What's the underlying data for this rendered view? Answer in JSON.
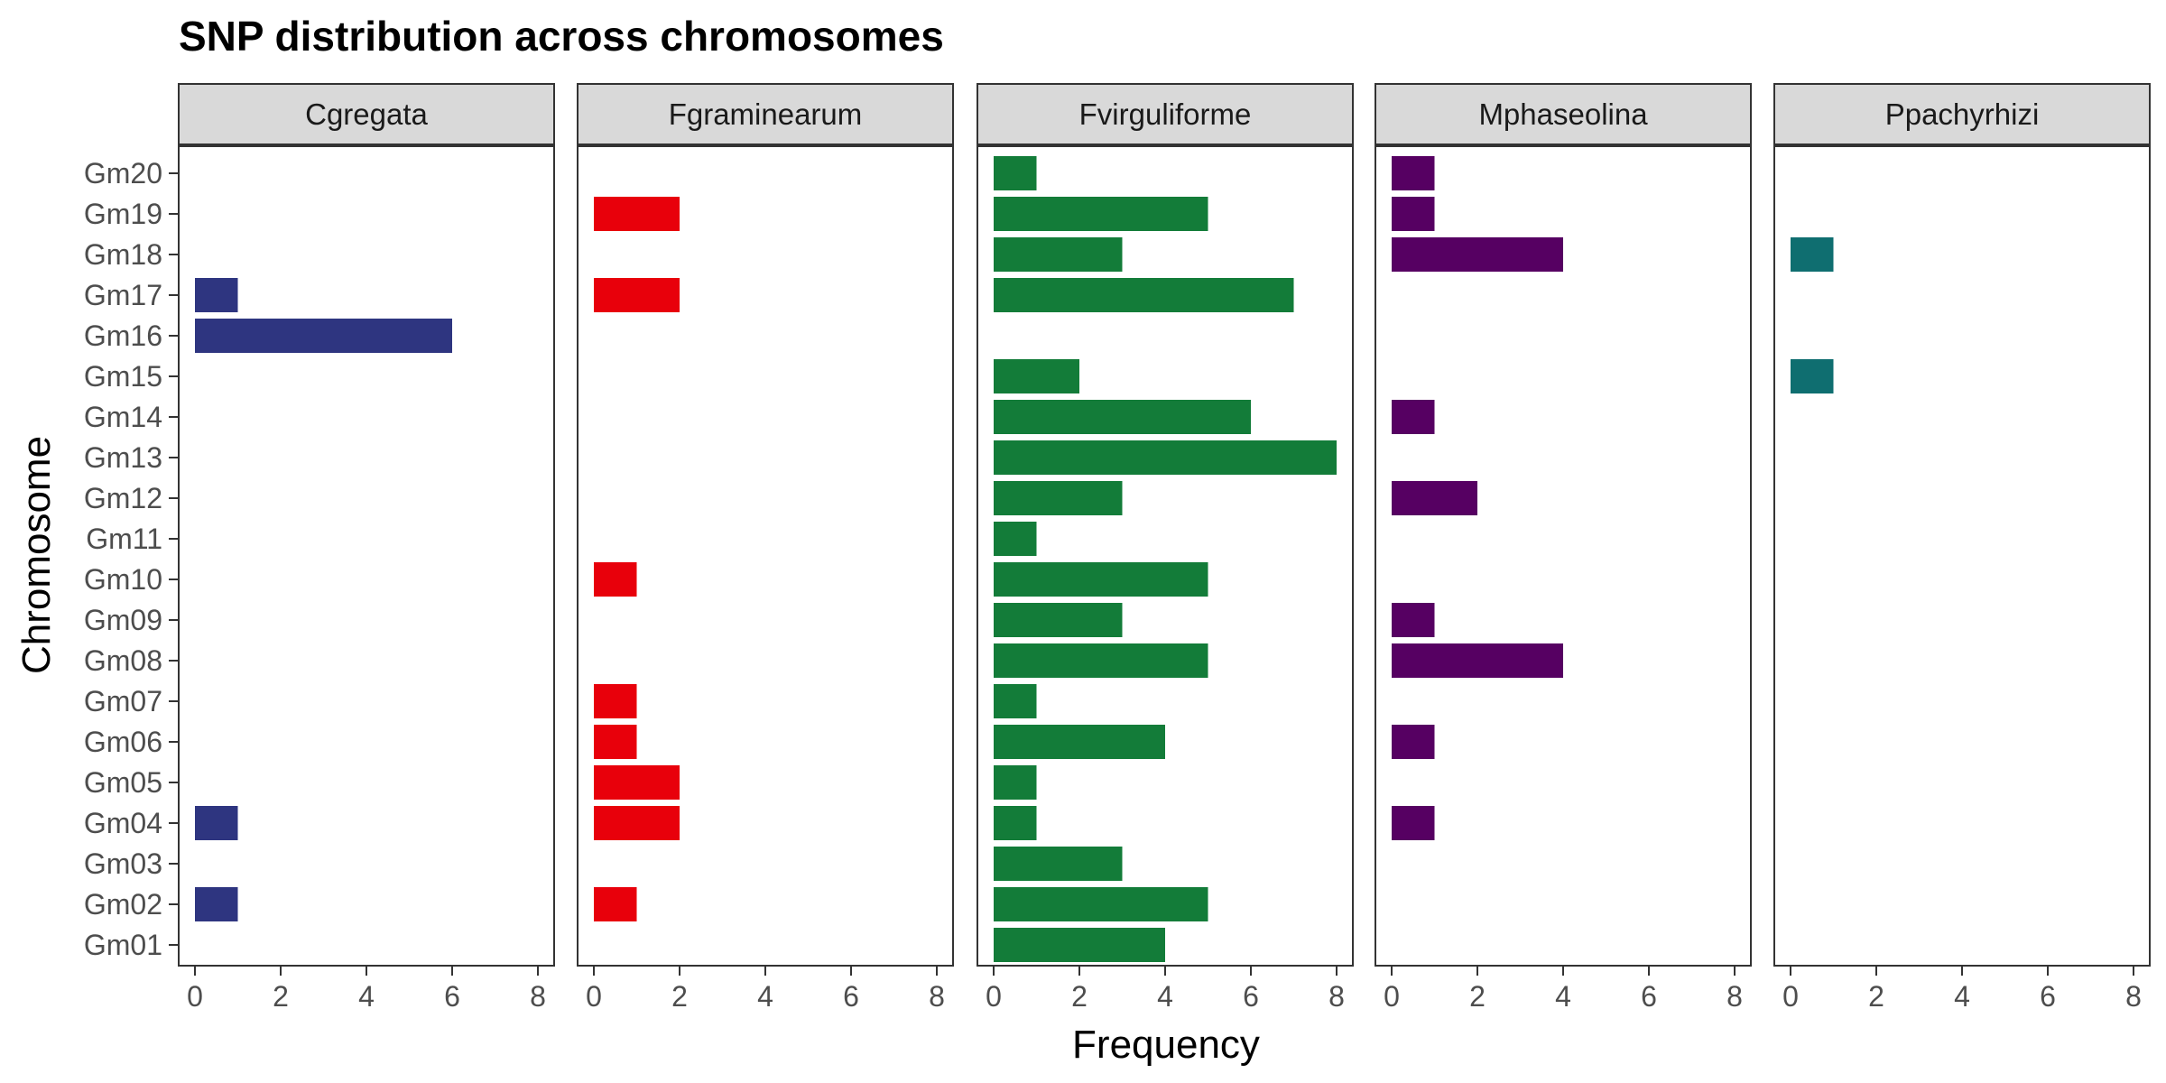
{
  "chart_data": {
    "type": "bar",
    "orientation": "horizontal",
    "faceted": true,
    "title": "SNP distribution across chromosomes",
    "xlabel": "Frequency",
    "ylabel": "Chromosome",
    "xlim": [
      0,
      8
    ],
    "x_ticks": [
      "0",
      "2",
      "4",
      "6",
      "8"
    ],
    "categories": [
      "Gm01",
      "Gm02",
      "Gm03",
      "Gm04",
      "Gm05",
      "Gm06",
      "Gm07",
      "Gm08",
      "Gm09",
      "Gm10",
      "Gm11",
      "Gm12",
      "Gm13",
      "Gm14",
      "Gm15",
      "Gm16",
      "Gm17",
      "Gm18",
      "Gm19",
      "Gm20"
    ],
    "grid": false,
    "legend": "none",
    "series": [
      {
        "name": "Cgregata",
        "color": "#2e3580",
        "values": [
          0,
          1,
          0,
          1,
          0,
          0,
          0,
          0,
          0,
          0,
          0,
          0,
          0,
          0,
          0,
          6,
          1,
          0,
          0,
          0
        ]
      },
      {
        "name": "Fgraminearum",
        "color": "#e8000b",
        "values": [
          0,
          1,
          0,
          2,
          2,
          1,
          1,
          0,
          0,
          1,
          0,
          0,
          0,
          0,
          0,
          0,
          2,
          0,
          2,
          0
        ]
      },
      {
        "name": "Fvirguliforme",
        "color": "#137c39",
        "values": [
          4,
          5,
          3,
          1,
          1,
          4,
          1,
          5,
          3,
          5,
          1,
          3,
          8,
          6,
          2,
          0,
          7,
          3,
          5,
          1
        ]
      },
      {
        "name": "Mphaseolina",
        "color": "#560062",
        "values": [
          0,
          0,
          0,
          1,
          0,
          1,
          0,
          4,
          1,
          0,
          0,
          2,
          0,
          1,
          0,
          0,
          0,
          4,
          1,
          1
        ]
      },
      {
        "name": "Ppachyrhizi",
        "color": "#0f6e70",
        "values": [
          0,
          0,
          0,
          0,
          0,
          0,
          0,
          0,
          0,
          0,
          0,
          0,
          0,
          0,
          1,
          0,
          0,
          1,
          0,
          0
        ]
      }
    ]
  }
}
